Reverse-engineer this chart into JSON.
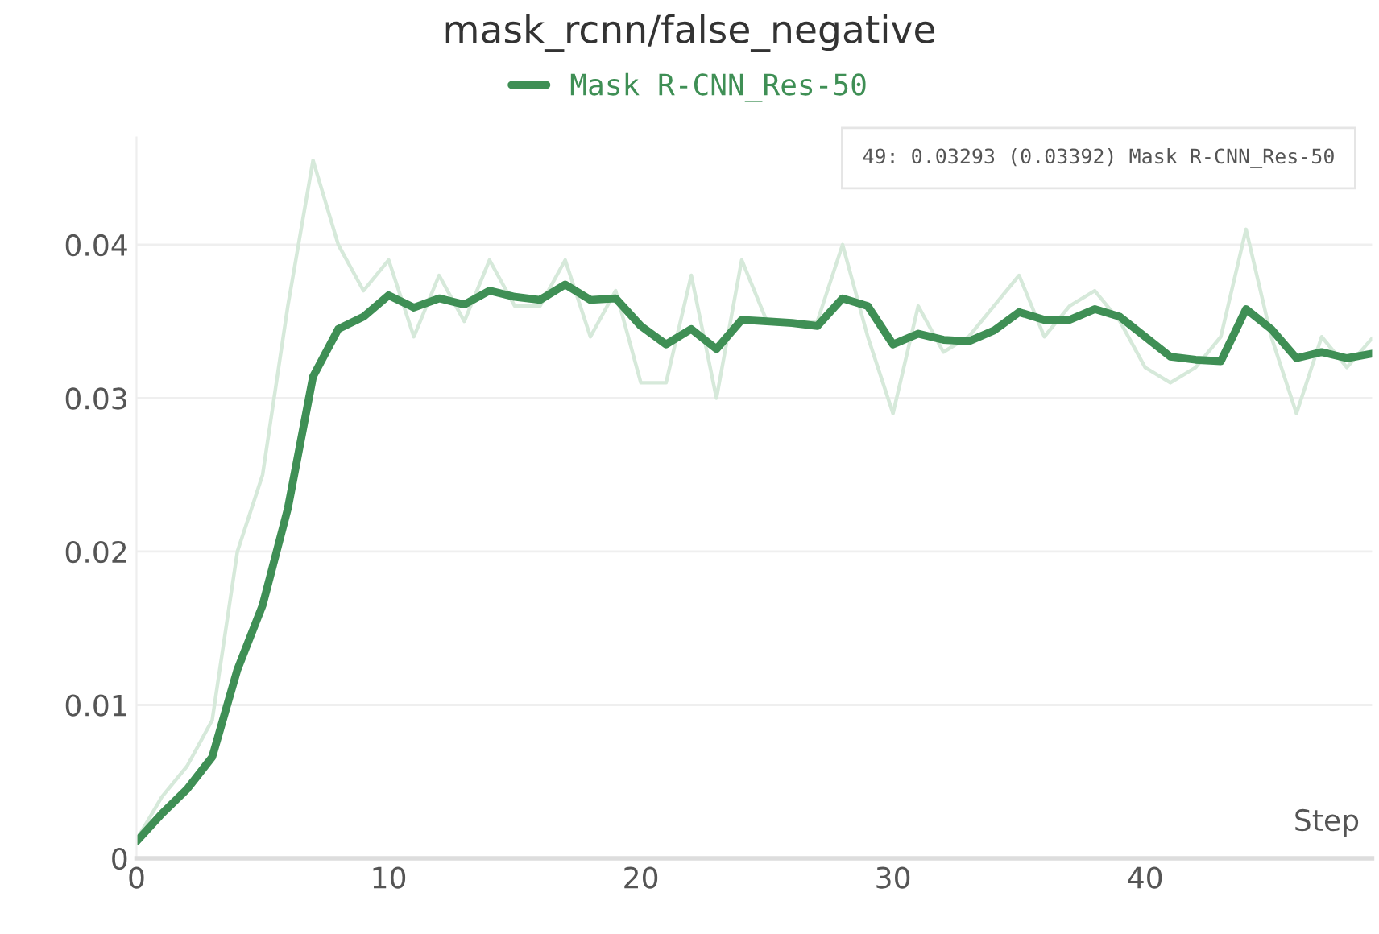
{
  "chart_data": {
    "type": "line",
    "title": "mask_rcnn/false_negative",
    "xlabel": "Step",
    "x": [
      0,
      1,
      2,
      3,
      4,
      5,
      6,
      7,
      8,
      9,
      10,
      11,
      12,
      13,
      14,
      15,
      16,
      17,
      18,
      19,
      20,
      21,
      22,
      23,
      24,
      25,
      26,
      27,
      28,
      29,
      30,
      31,
      32,
      33,
      34,
      35,
      36,
      37,
      38,
      39,
      40,
      41,
      42,
      43,
      44,
      45,
      46,
      47,
      48,
      49
    ],
    "series": [
      {
        "color": "#d6e9da",
        "values": [
          0.0012,
          0.004,
          0.006,
          0.009,
          0.02,
          0.025,
          0.036,
          0.0455,
          0.04,
          0.037,
          0.039,
          0.034,
          0.038,
          0.035,
          0.039,
          0.036,
          0.036,
          0.039,
          0.034,
          0.037,
          0.031,
          0.031,
          0.038,
          0.03,
          0.039,
          0.035,
          0.035,
          0.035,
          0.04,
          0.034,
          0.029,
          0.036,
          0.033,
          0.034,
          0.036,
          0.038,
          0.034,
          0.036,
          0.037,
          0.035,
          0.032,
          0.031,
          0.032,
          0.034,
          0.041,
          0.034,
          0.029,
          0.034,
          0.032,
          0.0339
        ]
      },
      {
        "name": "Mask R-CNN_Res-50",
        "color": "#3f8f55",
        "values": [
          0.0011,
          0.0029,
          0.0045,
          0.0066,
          0.0123,
          0.0165,
          0.0228,
          0.0314,
          0.0345,
          0.0353,
          0.0367,
          0.0359,
          0.0365,
          0.0361,
          0.037,
          0.0366,
          0.0364,
          0.0374,
          0.0364,
          0.0365,
          0.0347,
          0.0335,
          0.0345,
          0.0332,
          0.0351,
          0.035,
          0.0349,
          0.0347,
          0.0365,
          0.036,
          0.0335,
          0.0342,
          0.0338,
          0.0337,
          0.0344,
          0.0356,
          0.0351,
          0.0351,
          0.0358,
          0.0353,
          0.034,
          0.0327,
          0.0325,
          0.0324,
          0.0358,
          0.0345,
          0.0326,
          0.033,
          0.0326,
          0.0329
        ]
      }
    ],
    "xlim": [
      0,
      49
    ],
    "xticks": [
      0,
      10,
      20,
      30,
      40
    ],
    "ylim": [
      0,
      0.047
    ],
    "yticks": [
      0,
      0.01,
      0.02,
      0.03,
      0.04
    ],
    "grid": "y",
    "legend": "top",
    "line_style": "solid",
    "marker": "none",
    "annotations": [
      "49: 0.03293 (0.03392) Mask R-CNN_Res-50"
    ]
  }
}
